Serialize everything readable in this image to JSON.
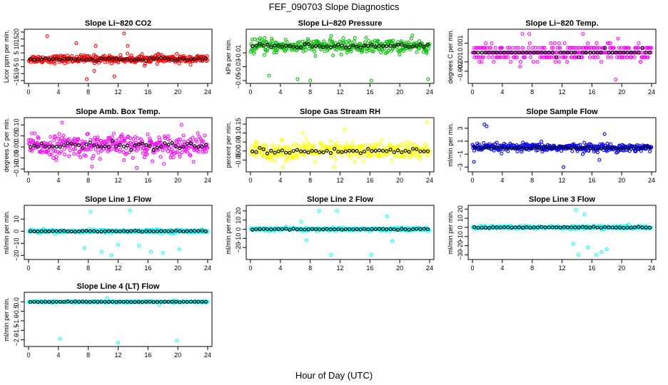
{
  "main_title": "FEF_090703  Slope Diagnostics",
  "x_axis_label": "Hour of Day (UTC)",
  "colors": {
    "co2": "#ff0000",
    "pressure": "#00c000",
    "temp": "#ff00ff",
    "amb": "#ff00ff",
    "rh": "#ffff00",
    "sample": "#0000ff",
    "line": "#00ffff",
    "mean": "#000000"
  },
  "chart_data": [
    {
      "type": "scatter",
      "id": "co2",
      "title": "Slope Li−820 CO2",
      "ylabel": "Licor ppm per min.",
      "xlim": [
        0,
        24
      ],
      "ylim": [
        -15,
        20
      ],
      "xticks": [
        "0",
        "4",
        "8",
        "12",
        "16",
        "20",
        "24"
      ],
      "yticks": [
        "−15",
        "−10",
        "−5",
        "0",
        "5",
        "10",
        "15",
        "20"
      ],
      "ytick_values": [
        -15,
        -10,
        -5,
        0,
        5,
        10,
        15,
        20
      ],
      "series_color": "#ff0000",
      "spread": 2.5,
      "center": 0.5,
      "outliers": [
        [
          2.5,
          17
        ],
        [
          12.8,
          19
        ],
        [
          6.4,
          12
        ],
        [
          9,
          10
        ],
        [
          13.3,
          10
        ],
        [
          7.8,
          -14
        ],
        [
          11.5,
          -12
        ],
        [
          8.8,
          -8
        ]
      ]
    },
    {
      "type": "scatter",
      "id": "pressure",
      "title": "Slope Li−820 Pressure",
      "ylabel": "kPa per min.",
      "xlim": [
        0,
        24
      ],
      "ylim": [
        -0.05,
        0.02
      ],
      "xticks": [
        "0",
        "4",
        "8",
        "12",
        "16",
        "20",
        "24"
      ],
      "yticks": [
        "−0.05",
        "−0.03",
        "−0.01"
      ],
      "ytick_values": [
        -0.05,
        -0.03,
        -0.01
      ],
      "series_color": "#00c000",
      "spread": 0.009,
      "center": -0.0005,
      "outliers": [
        [
          6.3,
          -0.048
        ],
        [
          8,
          -0.05
        ],
        [
          16.2,
          -0.05
        ],
        [
          23.8,
          -0.048
        ],
        [
          2.5,
          -0.043
        ]
      ]
    },
    {
      "type": "scatter",
      "id": "temp",
      "title": "Slope Li−820 Temp.",
      "ylabel": "degrees C per min.",
      "xlim": [
        0,
        24
      ],
      "ylim": [
        -0.003,
        0.0022
      ],
      "xticks": [
        "0",
        "4",
        "8",
        "12",
        "16",
        "20",
        "24"
      ],
      "yticks": [
        "−0.002",
        "−0.001",
        "0.001"
      ],
      "ytick_values": [
        -0.002,
        -0.001,
        0.001
      ],
      "series_color": "#ff00ff",
      "spread": 0.0008,
      "center": 0.0,
      "quantized": 0.0005,
      "outliers": [
        [
          6.7,
          0.002
        ],
        [
          7.6,
          0.002
        ],
        [
          19.2,
          -0.0029
        ],
        [
          19.5,
          0.0015
        ],
        [
          14.8,
          0.002
        ]
      ]
    },
    {
      "type": "scatter",
      "id": "amb",
      "title": "Slope Amb. Box Temp.",
      "ylabel": "degrees C per min.",
      "xlim": [
        0,
        24
      ],
      "ylim": [
        -0.1,
        0.12
      ],
      "xticks": [
        "0",
        "4",
        "8",
        "12",
        "16",
        "20",
        "24"
      ],
      "yticks": [
        "−0.10",
        "−0.05",
        "0.00",
        "0.05",
        "0.10"
      ],
      "ytick_values": [
        -0.1,
        -0.05,
        0,
        0.05,
        0.1
      ],
      "series_color": "#ff00ff",
      "spread": 0.045,
      "center": 0.005,
      "outliers": [
        [
          4.5,
          0.11
        ],
        [
          14.5,
          -0.095
        ],
        [
          8.5,
          -0.09
        ],
        [
          20.5,
          0.1
        ]
      ]
    },
    {
      "type": "scatter",
      "id": "rh",
      "title": "Slope Gas Stream RH",
      "ylabel": "percent per min.",
      "xlim": [
        0,
        24
      ],
      "ylim": [
        -0.1,
        0.17
      ],
      "xticks": [
        "0",
        "4",
        "8",
        "12",
        "16",
        "20",
        "24"
      ],
      "yticks": [
        "−0.05",
        "0.00",
        "0.05",
        "0.10",
        "0.15"
      ],
      "ytick_values": [
        -0.05,
        0,
        0.05,
        0.1,
        0.15
      ],
      "series_color": "#ffff00",
      "spread": 0.045,
      "center": 0.0,
      "outliers": [
        [
          23.7,
          0.16
        ],
        [
          12.6,
          0.12
        ],
        [
          7,
          0.1
        ],
        [
          4.3,
          -0.09
        ],
        [
          11.2,
          -0.09
        ]
      ]
    },
    {
      "type": "scatter",
      "id": "sample",
      "title": "Slope Sample Flow",
      "ylabel": "ml/min per min.",
      "xlim": [
        0,
        24
      ],
      "ylim": [
        -3.3,
        4.2
      ],
      "xticks": [
        "0",
        "4",
        "8",
        "12",
        "16",
        "20",
        "24"
      ],
      "yticks": [
        "−3",
        "−1",
        "1",
        "3"
      ],
      "ytick_values": [
        -3,
        -1,
        1,
        3
      ],
      "series_color": "#0000ff",
      "spread": 0.55,
      "center": 0.0,
      "outliers": [
        [
          1.6,
          3.6
        ],
        [
          1.9,
          3.3
        ],
        [
          12.2,
          -3
        ],
        [
          17.7,
          2.1
        ],
        [
          0.2,
          -2.2
        ],
        [
          17,
          -1.9
        ]
      ]
    },
    {
      "type": "scatter",
      "id": "line1",
      "title": "Slope Line 1 Flow",
      "ylabel": "ml/min per min.",
      "xlim": [
        0,
        24
      ],
      "ylim": [
        -21,
        19
      ],
      "xticks": [
        "0",
        "4",
        "8",
        "12",
        "16",
        "20",
        "24"
      ],
      "yticks": [
        "−20",
        "−10",
        "0",
        "10"
      ],
      "ytick_values": [
        -20,
        -10,
        0,
        10
      ],
      "series_color": "#00ffff",
      "spread": 1.2,
      "center": 0.0,
      "outliers": [
        [
          8.3,
          16
        ],
        [
          11.1,
          -20
        ],
        [
          13.6,
          17
        ],
        [
          9.8,
          -17
        ],
        [
          18,
          -18
        ],
        [
          16.4,
          -17
        ],
        [
          20.2,
          -15
        ],
        [
          12,
          -11
        ],
        [
          7.5,
          -14
        ],
        [
          14.8,
          -12
        ]
      ]
    },
    {
      "type": "scatter",
      "id": "line2",
      "title": "Slope Line 2 Flow",
      "ylabel": "ml/min per min.",
      "xlim": [
        0,
        24
      ],
      "ylim": [
        -30,
        23
      ],
      "xticks": [
        "0",
        "4",
        "8",
        "12",
        "16",
        "20",
        "24"
      ],
      "yticks": [
        "−20",
        "−10",
        "0",
        "10",
        "20"
      ],
      "ytick_values": [
        -20,
        -10,
        0,
        10,
        20
      ],
      "series_color": "#00ffff",
      "spread": 1.5,
      "center": 0.0,
      "outliers": [
        [
          9.2,
          20
        ],
        [
          10.8,
          -28
        ],
        [
          11.6,
          20
        ],
        [
          16.2,
          -28
        ],
        [
          18.3,
          14
        ],
        [
          6.8,
          8
        ],
        [
          7.5,
          -12
        ],
        [
          19,
          -13
        ]
      ]
    },
    {
      "type": "scatter",
      "id": "line3",
      "title": "Slope Line 3 Flow",
      "ylabel": "ml/min per min.",
      "xlim": [
        0,
        24
      ],
      "ylim": [
        -32,
        21
      ],
      "xticks": [
        "0",
        "4",
        "8",
        "12",
        "16",
        "20",
        "24"
      ],
      "yticks": [
        "−30",
        "−20",
        "−10",
        "0",
        "10",
        "20"
      ],
      "ytick_values": [
        -30,
        -20,
        -10,
        0,
        10,
        20
      ],
      "series_color": "#00ffff",
      "spread": 1.5,
      "center": 0.0,
      "outliers": [
        [
          13.9,
          19
        ],
        [
          15,
          14
        ],
        [
          14.2,
          -30
        ],
        [
          17.3,
          -27
        ],
        [
          16.6,
          -30
        ],
        [
          13.5,
          -18
        ],
        [
          15.5,
          -22
        ],
        [
          18,
          -24
        ]
      ]
    },
    {
      "type": "scatter",
      "id": "line4",
      "title": "Slope Line 4 (LT) Flow",
      "ylabel": "ml/min per min.",
      "xlim": [
        0,
        24
      ],
      "ylim": [
        -2.2,
        0.35
      ],
      "xticks": [
        "0",
        "4",
        "8",
        "12",
        "16",
        "20",
        "24"
      ],
      "yticks": [
        "−2.0",
        "−1.5",
        "−1.0",
        "−0.5",
        "0.0"
      ],
      "ytick_values": [
        -2,
        -1.5,
        -1,
        -0.5,
        0
      ],
      "series_color": "#00ffff",
      "spread": 0.04,
      "center": 0.0,
      "outliers": [
        [
          4.2,
          -1.95
        ],
        [
          12,
          -2.15
        ],
        [
          19.9,
          -2.05
        ],
        [
          10.5,
          0.2
        ],
        [
          17.5,
          -0.15
        ]
      ]
    }
  ]
}
